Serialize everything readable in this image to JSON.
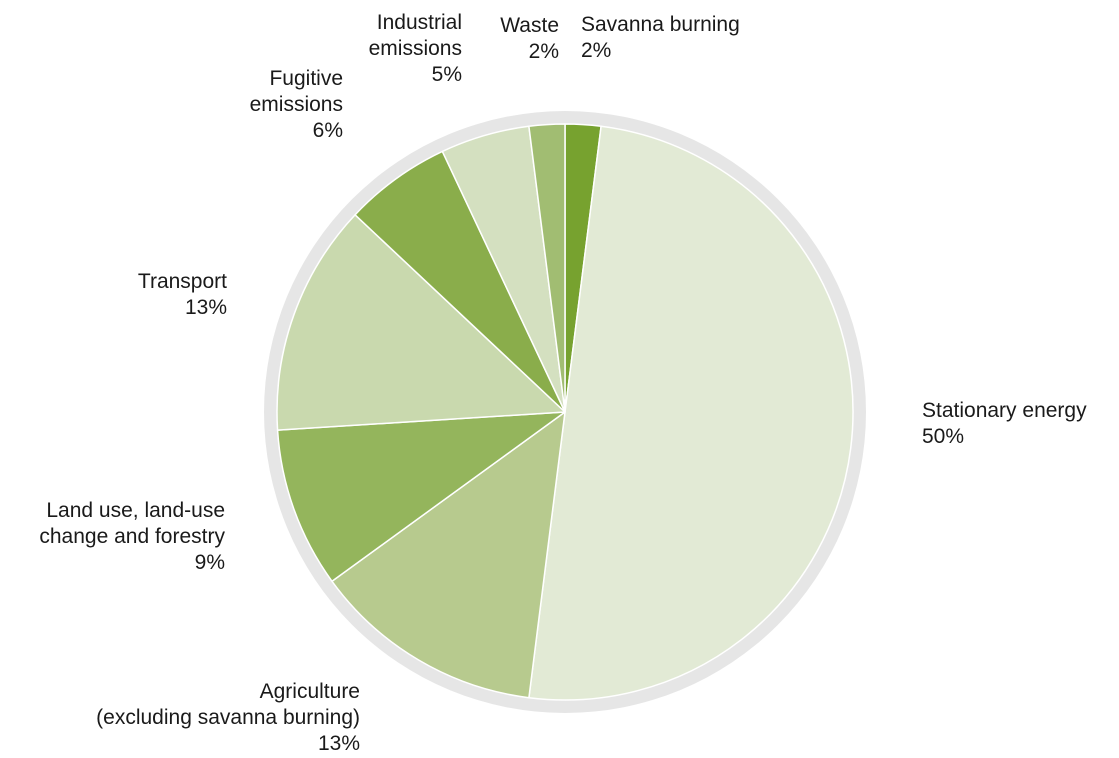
{
  "chart_data": {
    "type": "pie",
    "slices": [
      {
        "name": "Savanna burning",
        "label_lines": [
          "Savanna burning",
          "2%"
        ],
        "value": 2,
        "color": "#77a22f"
      },
      {
        "name": "Stationary energy",
        "label_lines": [
          "Stationary energy",
          "50%"
        ],
        "value": 50,
        "color": "#e2ead5"
      },
      {
        "name": "Agriculture (excluding savanna burning)",
        "label_lines": [
          "Agriculture",
          "(excluding savanna burning)",
          "13%"
        ],
        "value": 13,
        "color": "#b7ca8e"
      },
      {
        "name": "Land use, land-use change and forestry",
        "label_lines": [
          "Land use, land-use",
          "change and forestry",
          "9%"
        ],
        "value": 9,
        "color": "#94b55c"
      },
      {
        "name": "Transport",
        "label_lines": [
          "Transport",
          "13%"
        ],
        "value": 13,
        "color": "#c9d9ae"
      },
      {
        "name": "Fugitive emissions",
        "label_lines": [
          "Fugitive",
          "emissions",
          "6%"
        ],
        "value": 6,
        "color": "#8aad4b"
      },
      {
        "name": "Industrial emissions",
        "label_lines": [
          "Industrial",
          "emissions",
          "5%"
        ],
        "value": 5,
        "color": "#d4e0c0"
      },
      {
        "name": "Waste",
        "label_lines": [
          "Waste",
          "2%"
        ],
        "value": 2,
        "color": "#a1bd72"
      }
    ],
    "start": "12 o'clock",
    "direction": "clockwise",
    "legend": "none",
    "ring_color": "#e6e6e6",
    "edge_color": "#ffffff"
  }
}
